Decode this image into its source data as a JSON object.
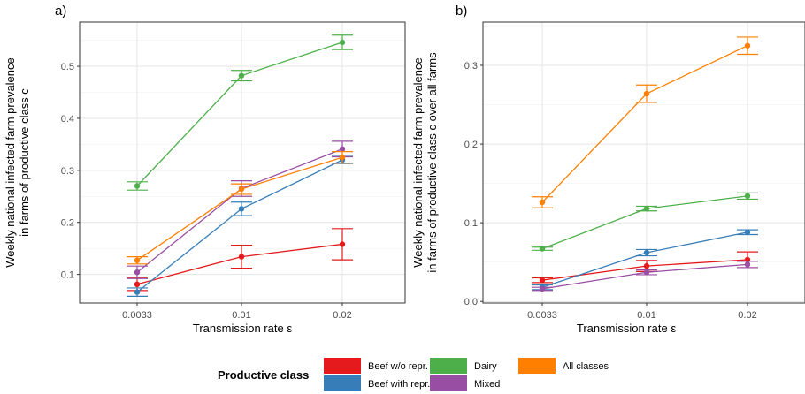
{
  "legend": {
    "title": "Productive class",
    "items": [
      {
        "label": "Beef w/o repr.",
        "color": "#E41A1C"
      },
      {
        "label": "Beef with repr.",
        "color": "#377EB8"
      },
      {
        "label": "Dairy",
        "color": "#4DAF4A"
      },
      {
        "label": "Mixed",
        "color": "#984EA3"
      },
      {
        "label": "All classes",
        "color": "#FF7F00"
      }
    ]
  },
  "chart_data": [
    {
      "type": "line",
      "panel_label": "a)",
      "xlabel": "Transmission rate  ε",
      "ylabel": [
        "Weekly national infected farm prevalence",
        "in farms of productive class  c"
      ],
      "categories": [
        "0.0033",
        "0.01",
        "0.02"
      ],
      "ylim": [
        0.045,
        0.585
      ],
      "yticks": [
        0.1,
        0.2,
        0.3,
        0.4,
        0.5
      ],
      "ytick_labels": [
        "0.1",
        "0.2",
        "0.3",
        "0.4",
        "0.5"
      ],
      "grid": true,
      "series": [
        {
          "name": "Beef w/o repr.",
          "color": "#E41A1C",
          "values": [
            0.081,
            0.134,
            0.158
          ],
          "lower": [
            0.069,
            0.112,
            0.128
          ],
          "upper": [
            0.093,
            0.156,
            0.188
          ]
        },
        {
          "name": "Beef with repr.",
          "color": "#377EB8",
          "values": [
            0.066,
            0.226,
            0.32
          ],
          "lower": [
            0.058,
            0.213,
            0.313
          ],
          "upper": [
            0.074,
            0.239,
            0.327
          ]
        },
        {
          "name": "Dairy",
          "color": "#4DAF4A",
          "values": [
            0.27,
            0.482,
            0.546
          ],
          "lower": [
            0.262,
            0.472,
            0.532
          ],
          "upper": [
            0.278,
            0.492,
            0.56
          ]
        },
        {
          "name": "Mixed",
          "color": "#984EA3",
          "values": [
            0.104,
            0.265,
            0.341
          ],
          "lower": [
            0.092,
            0.25,
            0.326
          ],
          "upper": [
            0.116,
            0.28,
            0.356
          ]
        },
        {
          "name": "All classes",
          "color": "#FF7F00",
          "values": [
            0.127,
            0.264,
            0.325
          ],
          "lower": [
            0.12,
            0.254,
            0.314
          ],
          "upper": [
            0.134,
            0.274,
            0.336
          ]
        }
      ]
    },
    {
      "type": "line",
      "panel_label": "b)",
      "xlabel": "Transmission rate  ε",
      "ylabel": [
        "Weekly national infected farm prevalence",
        "in farms of productive class  c over all farms"
      ],
      "categories": [
        "0.0033",
        "0.01",
        "0.02"
      ],
      "ylim": [
        -0.002,
        0.355
      ],
      "yticks": [
        0.0,
        0.1,
        0.2,
        0.3
      ],
      "ytick_labels": [
        "0.0",
        "0.1",
        "0.2",
        "0.3"
      ],
      "grid": true,
      "series": [
        {
          "name": "Beef w/o repr.",
          "color": "#E41A1C",
          "values": [
            0.027,
            0.045,
            0.053
          ],
          "lower": [
            0.024,
            0.038,
            0.043
          ],
          "upper": [
            0.03,
            0.052,
            0.063
          ]
        },
        {
          "name": "Beef with repr.",
          "color": "#377EB8",
          "values": [
            0.018,
            0.062,
            0.088
          ],
          "lower": [
            0.015,
            0.058,
            0.085
          ],
          "upper": [
            0.021,
            0.066,
            0.091
          ]
        },
        {
          "name": "Dairy",
          "color": "#4DAF4A",
          "values": [
            0.067,
            0.118,
            0.134
          ],
          "lower": [
            0.065,
            0.115,
            0.13
          ],
          "upper": [
            0.069,
            0.121,
            0.138
          ]
        },
        {
          "name": "Mixed",
          "color": "#984EA3",
          "values": [
            0.016,
            0.037,
            0.047
          ],
          "lower": [
            0.014,
            0.034,
            0.043
          ],
          "upper": [
            0.018,
            0.04,
            0.051
          ]
        },
        {
          "name": "All classes",
          "color": "#FF7F00",
          "values": [
            0.126,
            0.264,
            0.325
          ],
          "lower": [
            0.119,
            0.253,
            0.314
          ],
          "upper": [
            0.133,
            0.275,
            0.336
          ]
        }
      ]
    }
  ]
}
